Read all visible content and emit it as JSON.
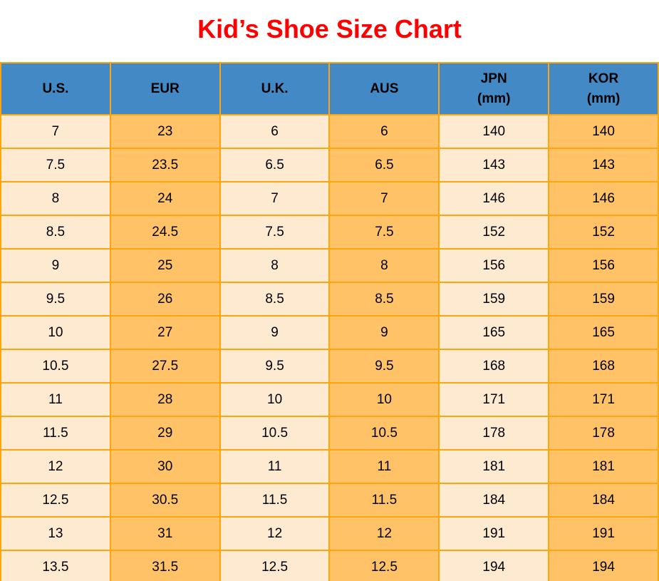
{
  "page": {
    "title": "Kid’s Shoe Size Chart"
  },
  "colors": {
    "title_red": "#FF0000",
    "header_blue": "#4389C6",
    "cell_cream": "#FDEAD0",
    "cell_orange": "#FFC266",
    "grid_orange": "#FFA40B",
    "text": "#000000"
  },
  "chart_data": {
    "type": "table",
    "title": "Kid’s Shoe Size Chart",
    "columns": [
      "U.S.",
      "EUR",
      "U.K.",
      "AUS",
      "JPN (mm)",
      "KOR (mm)"
    ],
    "header": [
      {
        "label": "U.S."
      },
      {
        "label": "EUR"
      },
      {
        "label": "U.K."
      },
      {
        "label": "AUS"
      },
      {
        "label": "JPN",
        "sub": "(mm)"
      },
      {
        "label": "KOR",
        "sub": "(mm)"
      }
    ],
    "rows": [
      [
        "7",
        "23",
        "6",
        "6",
        "140",
        "140"
      ],
      [
        "7.5",
        "23.5",
        "6.5",
        "6.5",
        "143",
        "143"
      ],
      [
        "8",
        "24",
        "7",
        "7",
        "146",
        "146"
      ],
      [
        "8.5",
        "24.5",
        "7.5",
        "7.5",
        "152",
        "152"
      ],
      [
        "9",
        "25",
        "8",
        "8",
        "156",
        "156"
      ],
      [
        "9.5",
        "26",
        "8.5",
        "8.5",
        "159",
        "159"
      ],
      [
        "10",
        "27",
        "9",
        "9",
        "165",
        "165"
      ],
      [
        "10.5",
        "27.5",
        "9.5",
        "9.5",
        "168",
        "168"
      ],
      [
        "11",
        "28",
        "10",
        "10",
        "171",
        "171"
      ],
      [
        "11.5",
        "29",
        "10.5",
        "10.5",
        "178",
        "178"
      ],
      [
        "12",
        "30",
        "11",
        "11",
        "181",
        "181"
      ],
      [
        "12.5",
        "30.5",
        "11.5",
        "11.5",
        "184",
        "184"
      ],
      [
        "13",
        "31",
        "12",
        "12",
        "191",
        "191"
      ],
      [
        "13.5",
        "31.5",
        "12.5",
        "12.5",
        "194",
        "194"
      ]
    ]
  }
}
